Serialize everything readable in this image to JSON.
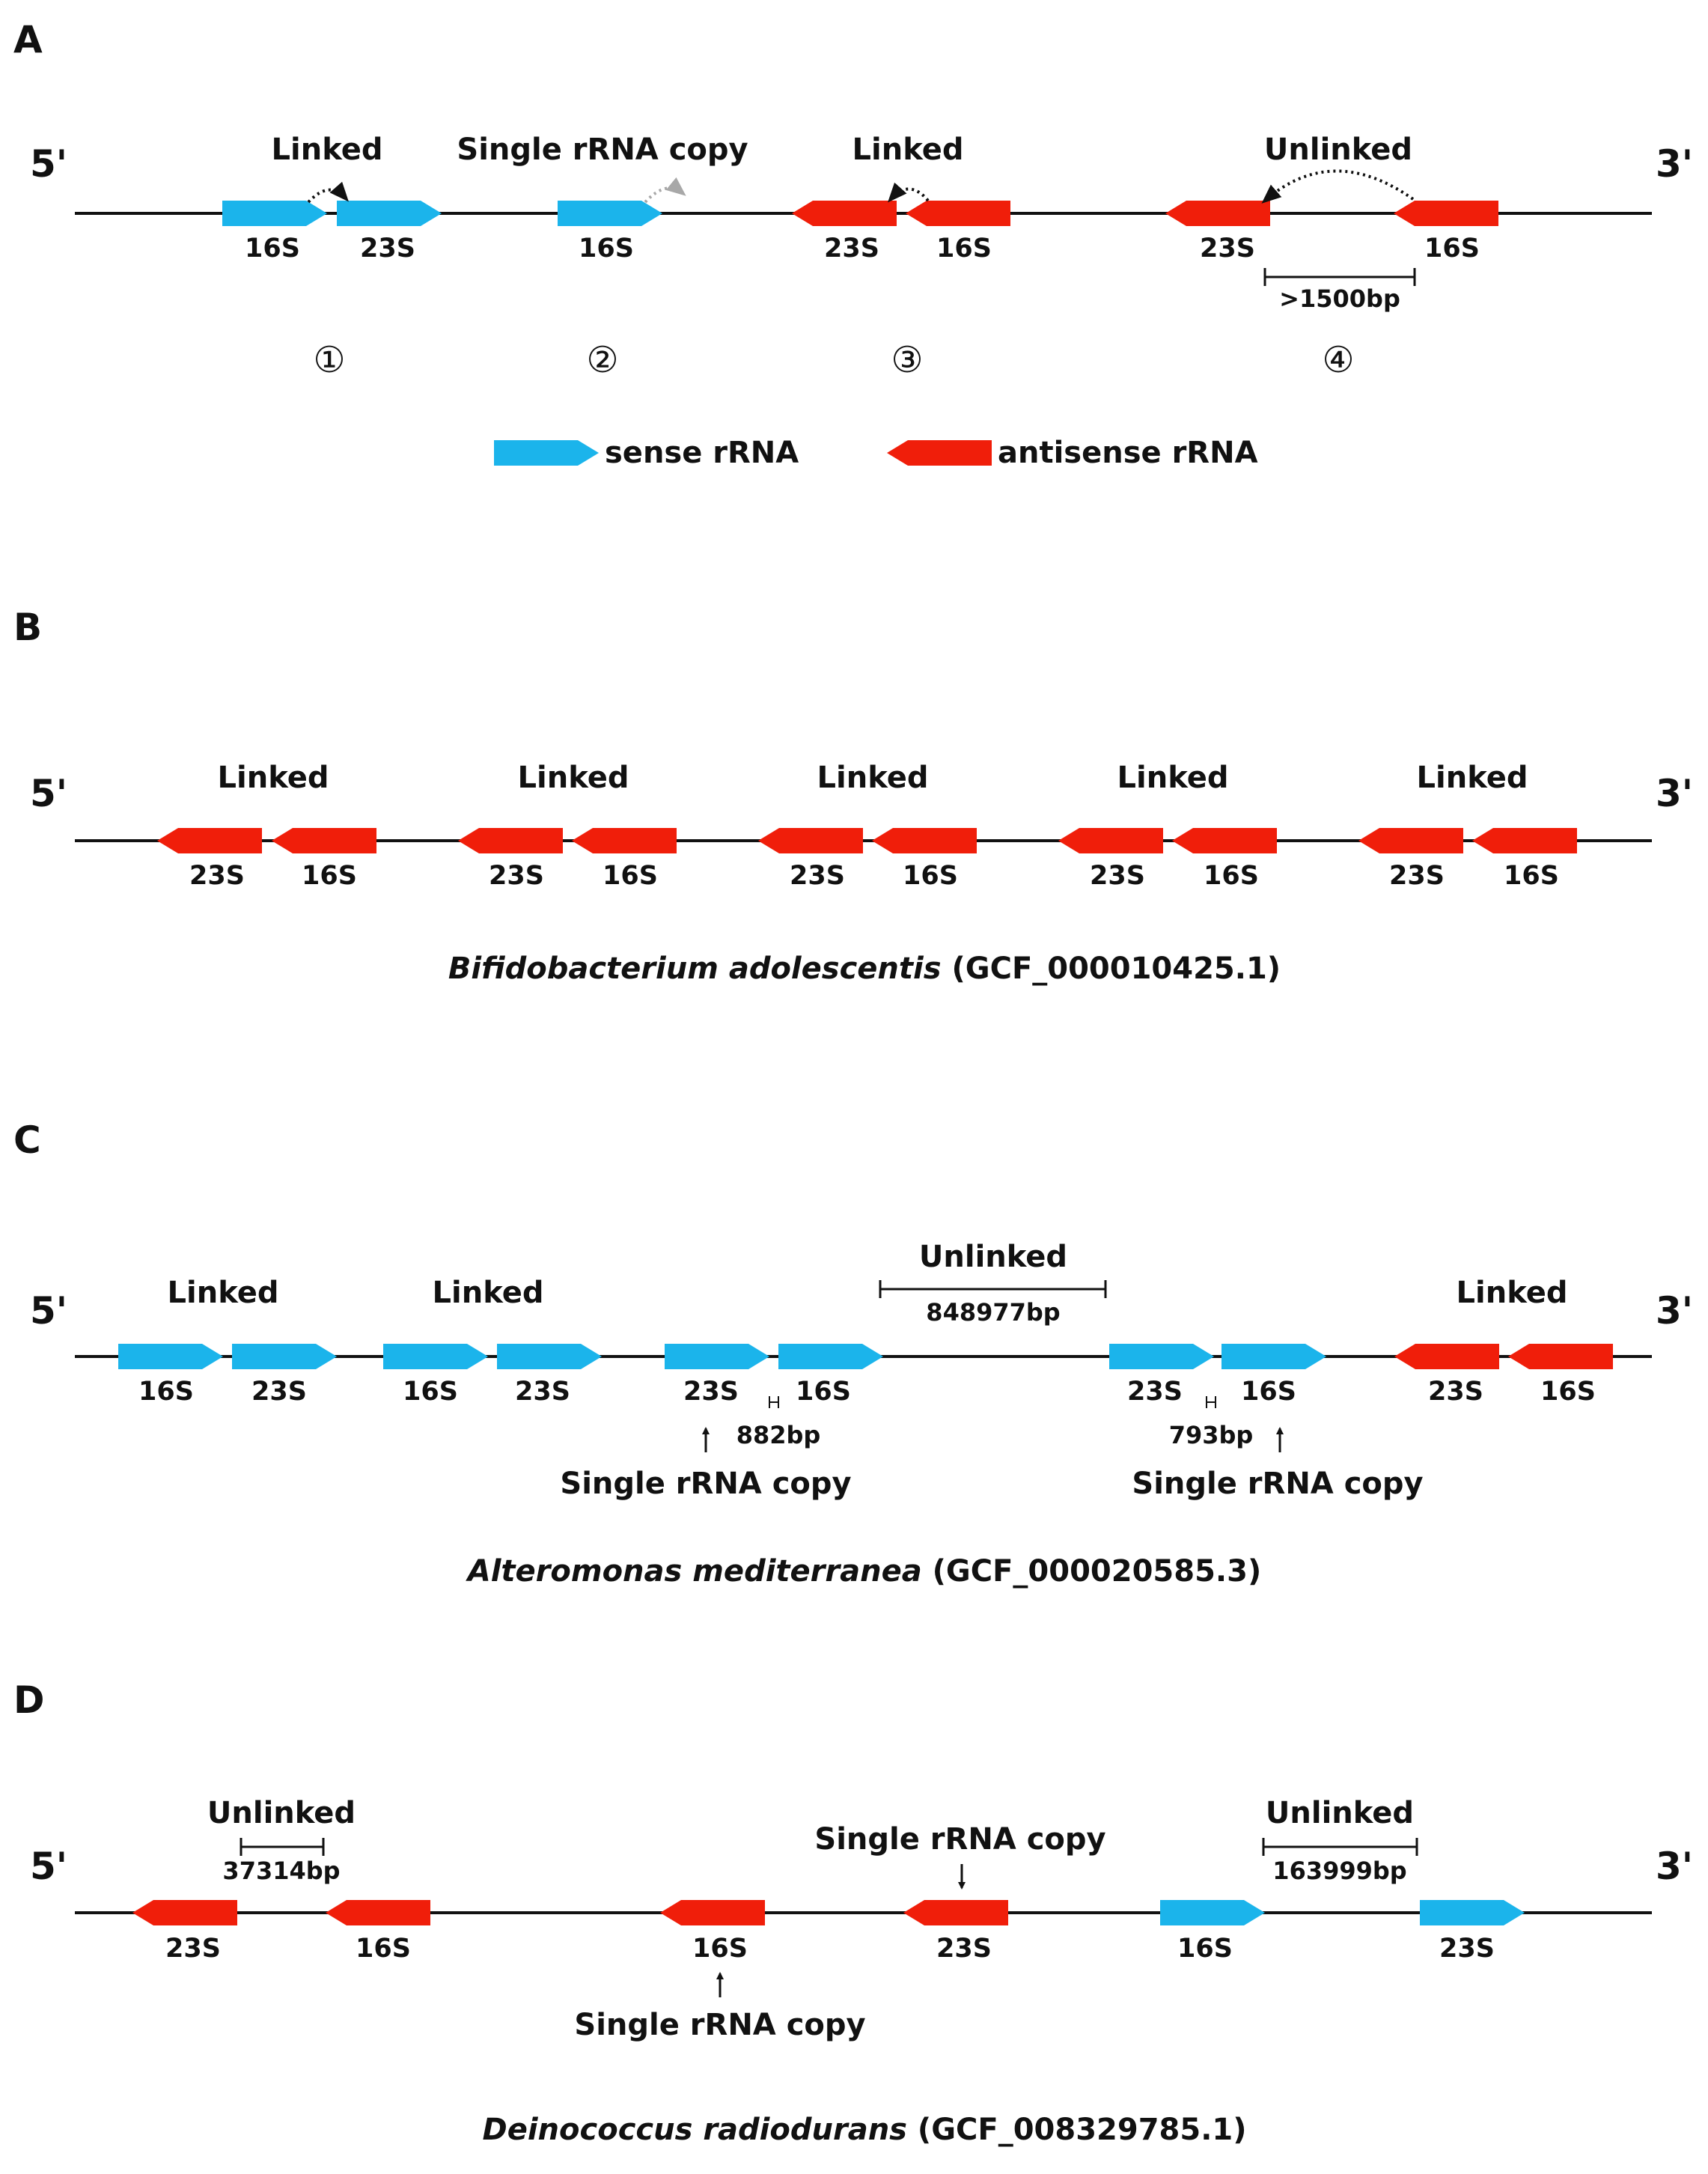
{
  "colors": {
    "sense": "#1BB4EB",
    "antisense": "#F01E0A",
    "text": "#111111",
    "grey_arrow": "#A8A8A8"
  },
  "ends": {
    "five_prime": "5'",
    "three_prime": "3'"
  },
  "panelA": {
    "letter": "A",
    "annotations": {
      "linked_1": "Linked",
      "single": "Single rRNA copy",
      "linked_3": "Linked",
      "unlinked_4": "Unlinked"
    },
    "genes": [
      {
        "label": "16S",
        "strand": "sense"
      },
      {
        "label": "23S",
        "strand": "sense"
      },
      {
        "label": "16S",
        "strand": "sense"
      },
      {
        "label": "23S",
        "strand": "antisense"
      },
      {
        "label": "16S",
        "strand": "antisense"
      },
      {
        "label": "23S",
        "strand": "antisense"
      },
      {
        "label": "16S",
        "strand": "antisense"
      }
    ],
    "distance": ">1500bp",
    "markers": [
      "①",
      "②",
      "③",
      "④"
    ],
    "legend": {
      "sense": "sense rRNA",
      "antisense": "antisense rRNA"
    }
  },
  "panelB": {
    "letter": "B",
    "annotations": [
      "Linked",
      "Linked",
      "Linked",
      "Linked",
      "Linked"
    ],
    "genes": [
      {
        "label": "23S",
        "strand": "antisense"
      },
      {
        "label": "16S",
        "strand": "antisense"
      },
      {
        "label": "23S",
        "strand": "antisense"
      },
      {
        "label": "16S",
        "strand": "antisense"
      },
      {
        "label": "23S",
        "strand": "antisense"
      },
      {
        "label": "16S",
        "strand": "antisense"
      },
      {
        "label": "23S",
        "strand": "antisense"
      },
      {
        "label": "16S",
        "strand": "antisense"
      },
      {
        "label": "23S",
        "strand": "antisense"
      },
      {
        "label": "16S",
        "strand": "antisense"
      }
    ],
    "species": {
      "name": "Bifidobacterium adolescentis",
      "accession": " (GCF_000010425.1)"
    }
  },
  "panelC": {
    "letter": "C",
    "annotations": {
      "linked_1": "Linked",
      "linked_2": "Linked",
      "unlinked": "Unlinked",
      "linked_3": "Linked"
    },
    "genes": [
      {
        "label": "16S",
        "strand": "sense"
      },
      {
        "label": "23S",
        "strand": "sense"
      },
      {
        "label": "16S",
        "strand": "sense"
      },
      {
        "label": "23S",
        "strand": "sense"
      },
      {
        "label": "23S",
        "strand": "sense"
      },
      {
        "label": "16S",
        "strand": "sense"
      },
      {
        "label": "23S",
        "strand": "sense"
      },
      {
        "label": "16S",
        "strand": "sense"
      },
      {
        "label": "23S",
        "strand": "antisense"
      },
      {
        "label": "16S",
        "strand": "antisense"
      }
    ],
    "distances": {
      "unlinked": "848977bp",
      "gap_1": "882bp",
      "gap_2": "793bp"
    },
    "single_labels": [
      "Single rRNA copy",
      "Single rRNA copy"
    ],
    "species": {
      "name": "Alteromonas mediterranea",
      "accession": " (GCF_000020585.3)"
    }
  },
  "panelD": {
    "letter": "D",
    "annotations": {
      "unlinked_1": "Unlinked",
      "single_top": "Single rRNA copy",
      "unlinked_2": "Unlinked",
      "single_bottom": "Single rRNA copy"
    },
    "genes": [
      {
        "label": "23S",
        "strand": "antisense"
      },
      {
        "label": "16S",
        "strand": "antisense"
      },
      {
        "label": "16S",
        "strand": "antisense"
      },
      {
        "label": "23S",
        "strand": "antisense"
      },
      {
        "label": "16S",
        "strand": "sense"
      },
      {
        "label": "23S",
        "strand": "sense"
      }
    ],
    "distances": {
      "unlinked_1": "37314bp",
      "unlinked_2": "163999bp"
    },
    "species": {
      "name": "Deinococcus radiodurans",
      "accession": " (GCF_008329785.1)"
    }
  }
}
